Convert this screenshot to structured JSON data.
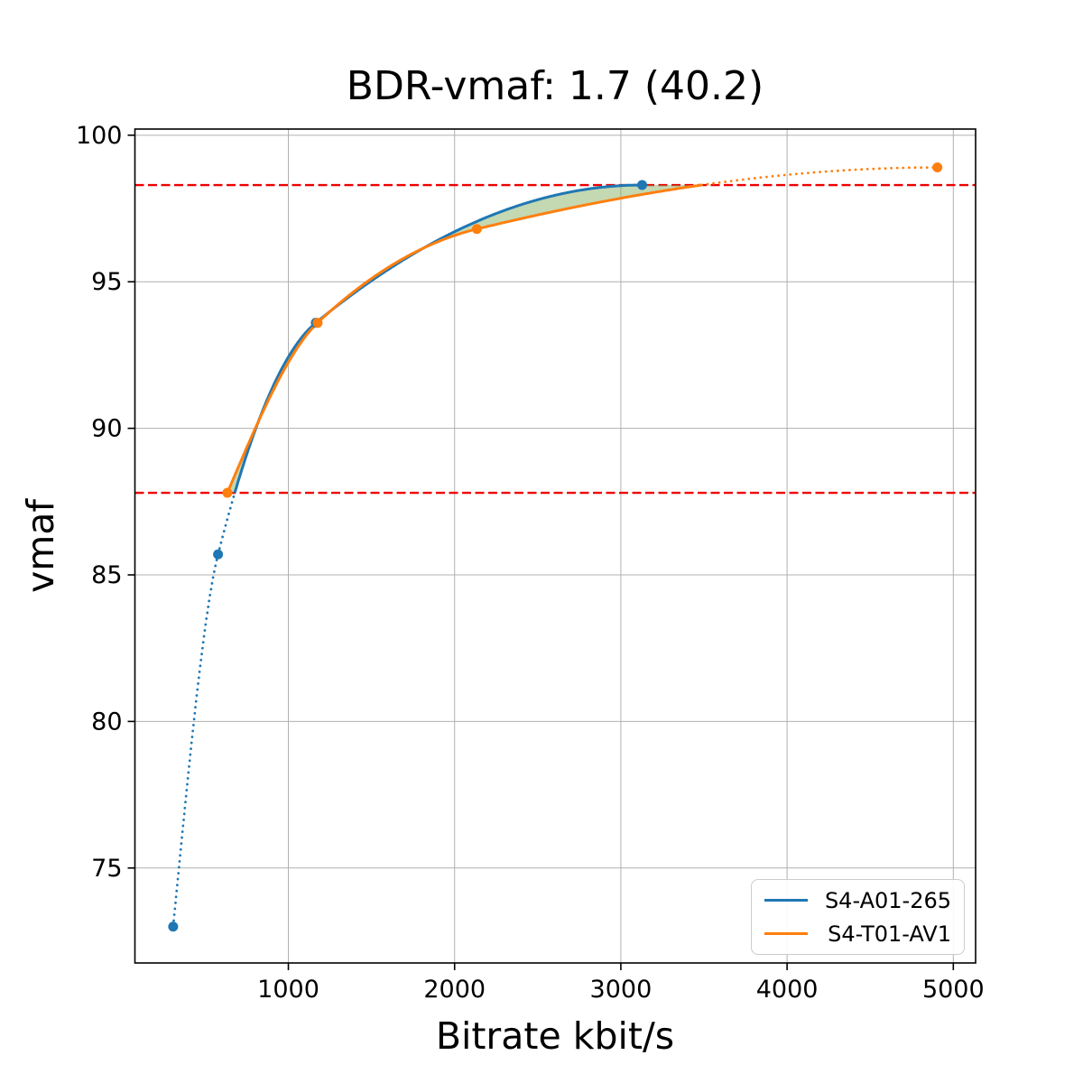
{
  "chart_data": {
    "type": "line",
    "title": "BDR-vmaf: 1.7 (40.2)",
    "xlabel": "Bitrate kbit/s",
    "ylabel": "vmaf",
    "xlim": [
      77,
      5134
    ],
    "ylim": [
      71.76,
      100.21
    ],
    "x_ticks": [
      1000,
      2000,
      3000,
      4000,
      5000
    ],
    "x_tick_labels": [
      "1000",
      "2000",
      "3000",
      "4000",
      "5000"
    ],
    "y_ticks": [
      75,
      80,
      85,
      90,
      95,
      100
    ],
    "y_tick_labels": [
      "75",
      "80",
      "85",
      "90",
      "95",
      "100"
    ],
    "grid": true,
    "grid_color": "#b0b0b0",
    "legend_position": "lower right",
    "series": [
      {
        "name": "S4-A01-265",
        "color": "#1f77b4",
        "marker": "circle",
        "interpolation": "pchip",
        "points": [
          [
            307,
            73.0
          ],
          [
            577,
            85.7
          ],
          [
            1165,
            93.6
          ],
          [
            3128,
            98.3
          ]
        ]
      },
      {
        "name": "S4-T01-AV1",
        "color": "#ff7f0e",
        "marker": "circle",
        "interpolation": "pchip",
        "points": [
          [
            633,
            87.8
          ],
          [
            1176,
            93.6
          ],
          [
            2134,
            96.8
          ],
          [
            4904,
            98.9
          ]
        ]
      }
    ],
    "reference_lines": {
      "style": "dashed",
      "color": "#ee0000",
      "lower_vmaf": 87.8,
      "upper_vmaf": 98.3
    },
    "overlap_fill": {
      "color": "#7ca854",
      "opacity": 0.45
    },
    "style_note": "solid inside integration bounds, dotted outside"
  }
}
